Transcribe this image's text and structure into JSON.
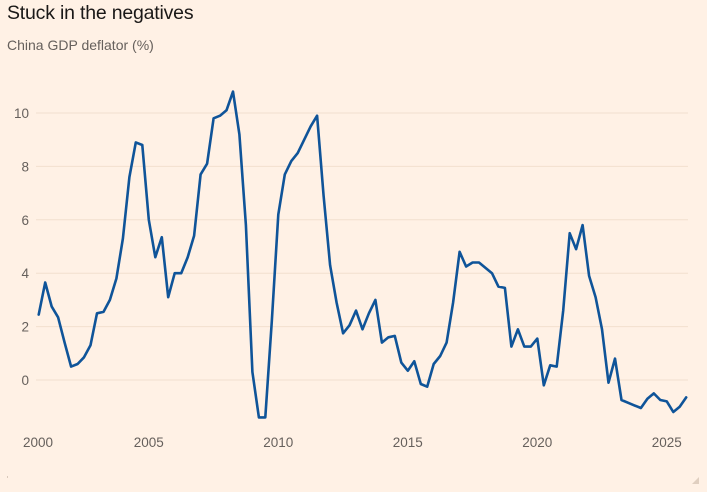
{
  "header": {
    "title": "Stuck in the negatives",
    "subtitle": "China GDP deflator (%)"
  },
  "colors": {
    "background": "#FFF1E5",
    "line": "#0f5499",
    "text": "#66605c",
    "title": "#1a1817"
  },
  "chart_data": {
    "type": "line",
    "title": "Stuck in the negatives",
    "subtitle": "China GDP deflator (%)",
    "xlabel": "",
    "ylabel": "",
    "xlim": [
      2000,
      2026.1
    ],
    "ylim": [
      -1.8,
      11
    ],
    "grid": true,
    "legend": "none",
    "x_ticks": [
      2000,
      2005,
      2010,
      2015,
      2020,
      2025
    ],
    "x_tick_labels": [
      "2000",
      "2005",
      "2010",
      "2015",
      "2020",
      "2025"
    ],
    "y_ticks": [
      0,
      2,
      4,
      6,
      8,
      10
    ],
    "y_tick_labels": [
      "0",
      "2",
      "4",
      "6",
      "8",
      "10"
    ],
    "x_start": 2000.75,
    "x_step": 0.25,
    "series": [
      {
        "name": "China GDP deflator (%)",
        "values": [
          2.45,
          3.65,
          2.75,
          2.35,
          1.4,
          0.5,
          0.6,
          0.85,
          1.3,
          2.5,
          2.55,
          3.0,
          3.8,
          5.3,
          7.6,
          8.9,
          8.8,
          6.0,
          4.6,
          5.35,
          3.1,
          4.0,
          4.0,
          4.6,
          5.4,
          7.7,
          8.1,
          9.8,
          9.9,
          10.1,
          10.8,
          9.2,
          5.8,
          0.3,
          -1.4,
          -1.4,
          2.2,
          6.2,
          7.7,
          8.2,
          8.5,
          9.0,
          9.5,
          9.9,
          6.9,
          4.3,
          2.9,
          1.75,
          2.05,
          2.6,
          1.9,
          2.5,
          3.0,
          1.4,
          1.6,
          1.65,
          0.65,
          0.35,
          0.7,
          -0.15,
          -0.25,
          0.6,
          0.9,
          1.4,
          2.9,
          4.8,
          4.25,
          4.4,
          4.4,
          4.2,
          4.0,
          3.5,
          3.45,
          1.25,
          1.9,
          1.25,
          1.25,
          1.55,
          -0.2,
          0.55,
          0.5,
          2.6,
          5.5,
          4.9,
          5.8,
          3.9,
          3.1,
          1.9,
          -0.1,
          0.8,
          -0.75,
          -0.85,
          -0.95,
          -1.05,
          -0.7,
          -0.5,
          -0.75,
          -0.8,
          -1.2,
          -1.0,
          -0.65
        ]
      }
    ]
  }
}
